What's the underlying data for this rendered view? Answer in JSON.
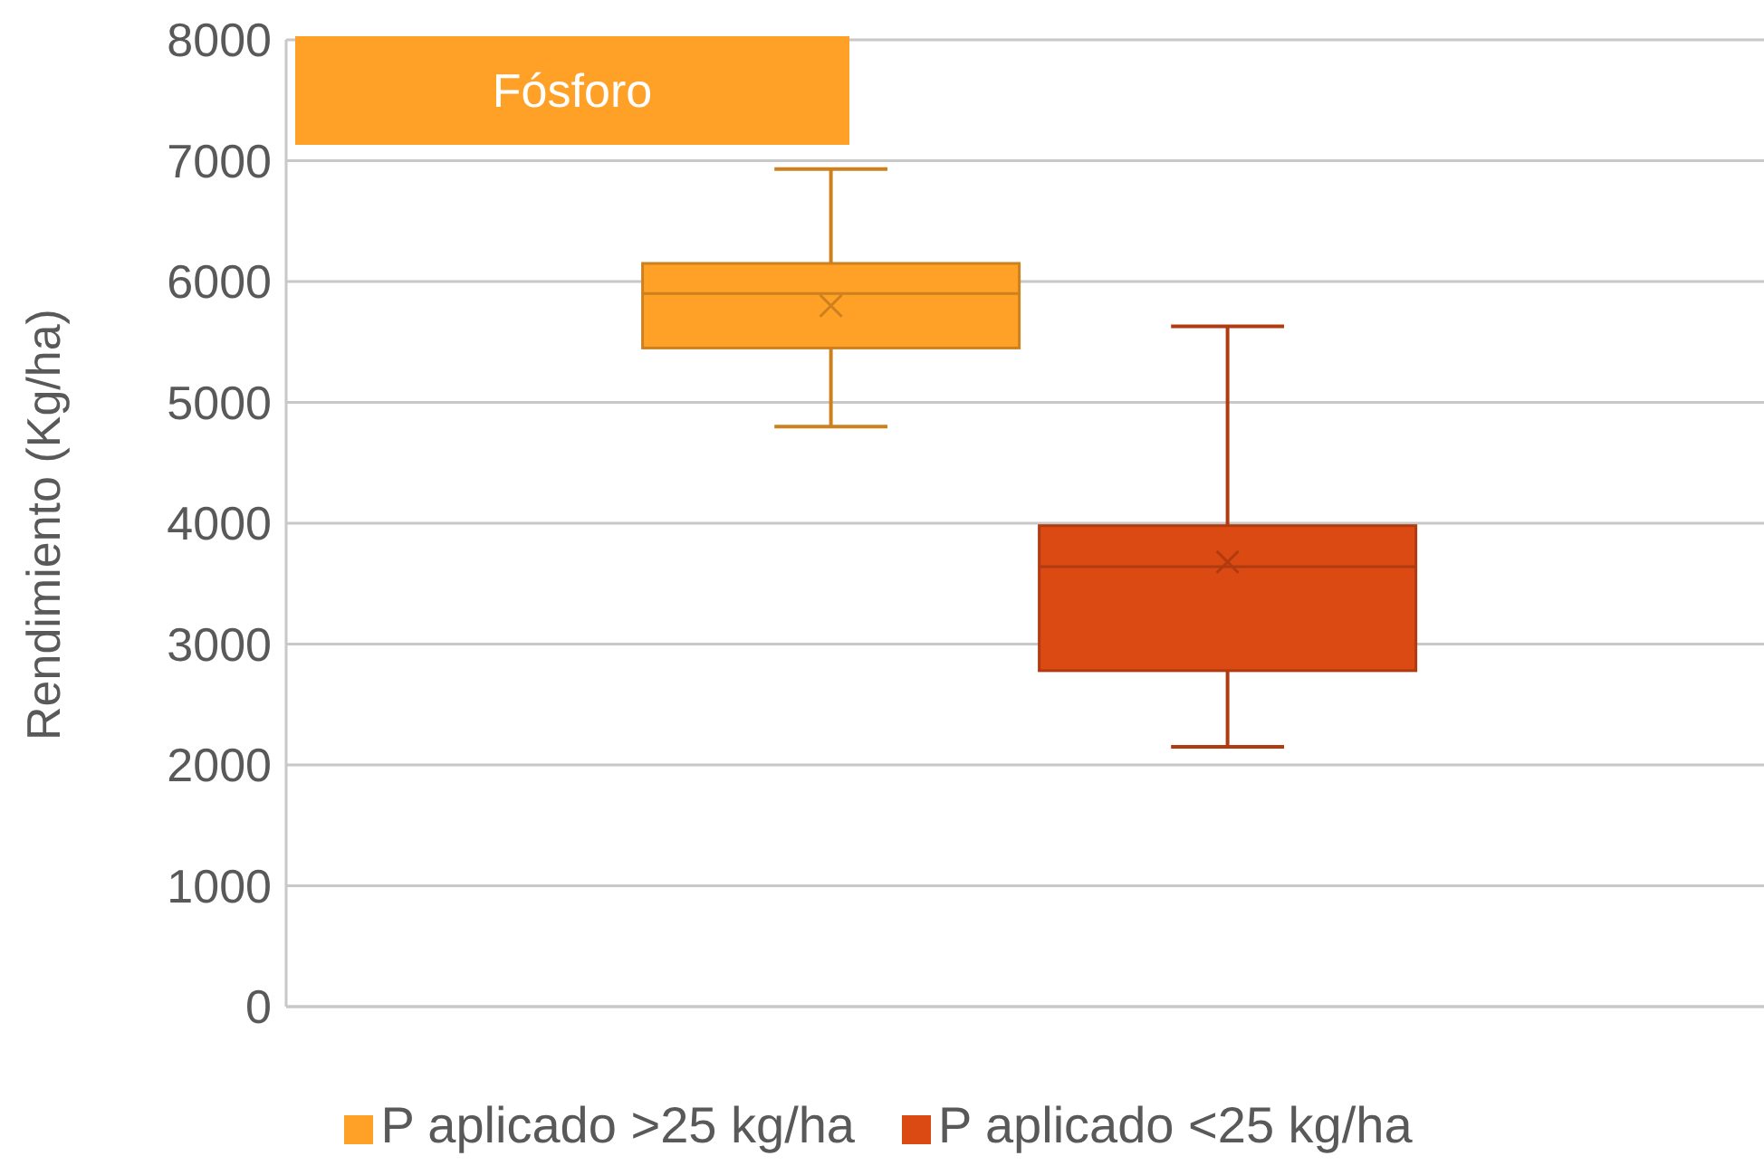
{
  "chart_data": {
    "type": "box",
    "title": "Fósforo",
    "ylabel": "Rendimiento (Kg/ha)",
    "categories": [
      null
    ],
    "series": [
      {
        "name": "P aplicado >25 kg/ha",
        "color": "#ffa126",
        "boxes": [
          {
            "low": 4800,
            "q1": 5450,
            "median": 5900,
            "q3": 6150,
            "high": 6930,
            "mean": 5800
          }
        ]
      },
      {
        "name": "P aplicado <25 kg/ha",
        "color": "#dc4a14",
        "boxes": [
          {
            "low": 2150,
            "q1": 2780,
            "median": 3640,
            "q3": 3980,
            "high": 5630,
            "mean": 3680
          }
        ]
      }
    ],
    "ylim": [
      0,
      8000
    ],
    "yticks": [
      0,
      1000,
      2000,
      3000,
      4000,
      5000,
      6000,
      7000,
      8000
    ],
    "grid": "y",
    "legend": "bottom",
    "marker": "cross"
  }
}
